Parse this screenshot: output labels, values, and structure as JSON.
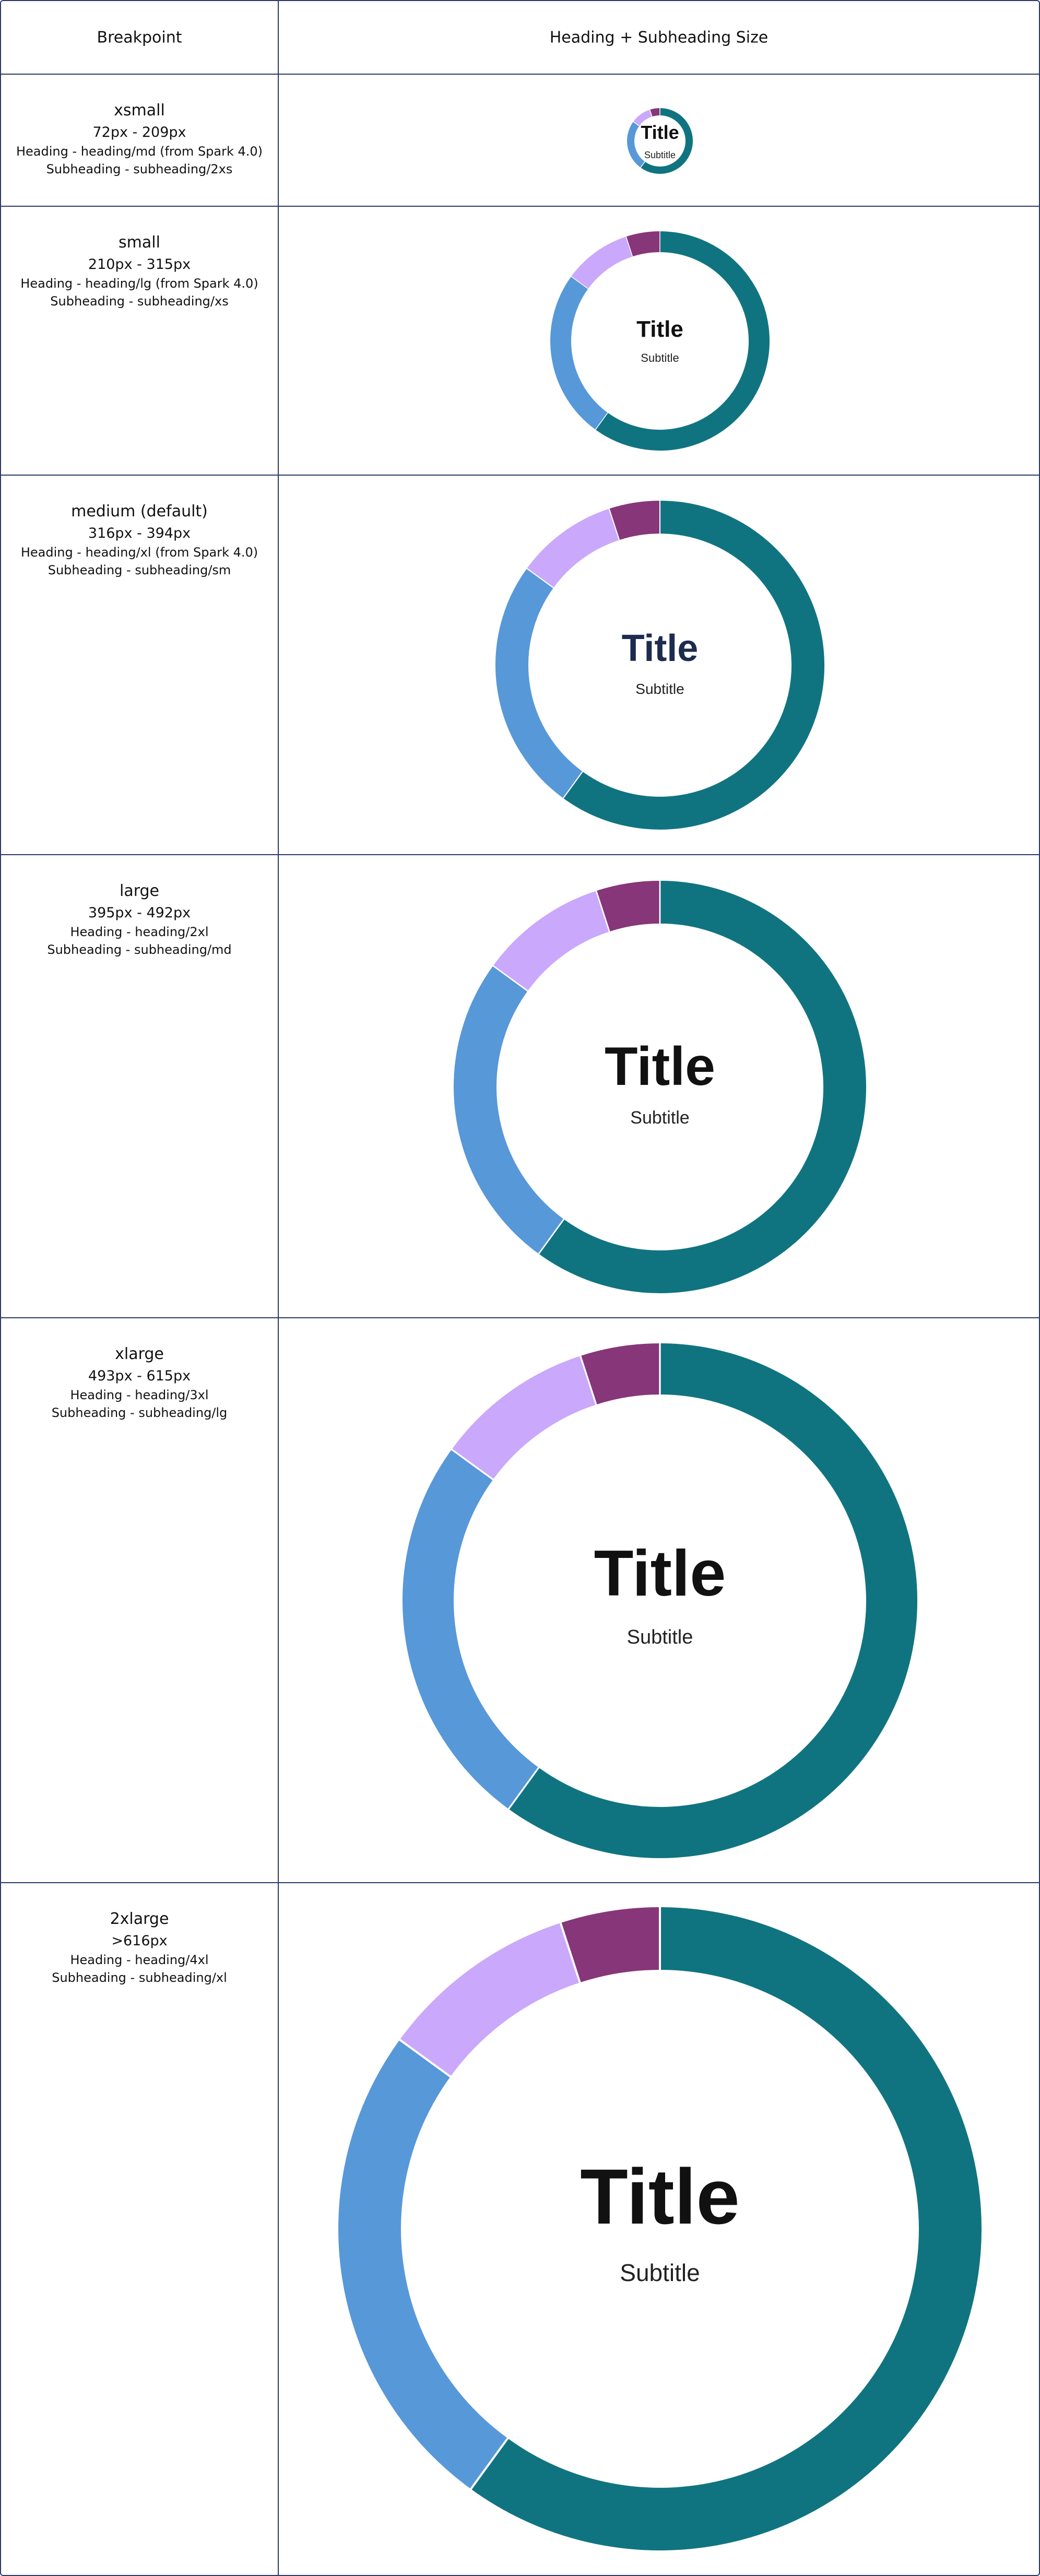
{
  "header": {
    "breakpoint_label": "Breakpoint",
    "size_label": "Heading + Subheading Size"
  },
  "rows": [
    {
      "name": "xsmall",
      "range": "72px - 209px",
      "heading": "Heading - heading/md (from Spark 4.0)",
      "subheading": "Subheading - subheading/2xs",
      "title": "Title",
      "subtitle": "Subtitle"
    },
    {
      "name": "small",
      "range": "210px - 315px",
      "heading": "Heading - heading/lg (from Spark 4.0)",
      "subheading": "Subheading - subheading/xs",
      "title": "Title",
      "subtitle": "Subtitle"
    },
    {
      "name": "medium (default)",
      "range": "316px - 394px",
      "heading": "Heading - heading/xl (from Spark 4.0)",
      "subheading": "Subheading -  subheading/sm",
      "title": "Title",
      "subtitle": "Subtitle"
    },
    {
      "name": "large",
      "range": "395px - 492px",
      "heading": "Heading - heading/2xl",
      "subheading": "Subheading - subheading/md",
      "title": "Title",
      "subtitle": "Subtitle"
    },
    {
      "name": "xlarge",
      "range": "493px - 615px",
      "heading": "Heading - heading/3xl",
      "subheading": "Subheading - subheading/lg",
      "title": "Title",
      "subtitle": "Subtitle"
    },
    {
      "name": "2xlarge",
      "range": ">616px",
      "heading": "Heading - heading/4xl",
      "subheading": "Subheading - subheading/xl",
      "title": "Title",
      "subtitle": "Subtitle"
    }
  ],
  "donut_segments": [
    {
      "fraction": 0.6,
      "color": "#107480"
    },
    {
      "fraction": 0.25,
      "color": "#5798d9"
    },
    {
      "fraction": 0.1,
      "color": "#caa8fb"
    },
    {
      "fraction": 0.05,
      "color": "#873679"
    }
  ],
  "colors": {
    "border": "#2b3a67",
    "title_default": "#111111",
    "title_medium": "#1d2b4f"
  }
}
